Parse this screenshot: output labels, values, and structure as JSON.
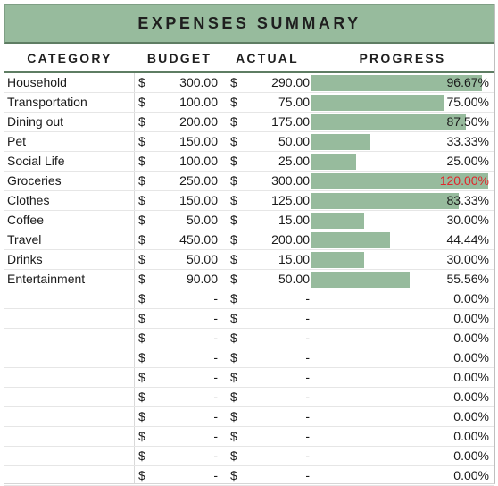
{
  "title": "EXPENSES SUMMARY",
  "headers": {
    "category": "CATEGORY",
    "budget": "BUDGET",
    "actual": "ACTUAL",
    "progress": "PROGRESS"
  },
  "currency_symbol": "$",
  "empty_value": "-",
  "colors": {
    "bar": "#97bb9d",
    "header_bg": "#97bb9d",
    "over_budget": "#e0262b"
  },
  "rows": [
    {
      "category": "Household",
      "budget": "300.00",
      "actual": "290.00",
      "progress": "96.67%",
      "progress_value": 0.9667
    },
    {
      "category": "Transportation",
      "budget": "100.00",
      "actual": "75.00",
      "progress": "75.00%",
      "progress_value": 0.75
    },
    {
      "category": "Dining out",
      "budget": "200.00",
      "actual": "175.00",
      "progress": "87.50%",
      "progress_value": 0.875
    },
    {
      "category": "Pet",
      "budget": "150.00",
      "actual": "50.00",
      "progress": "33.33%",
      "progress_value": 0.3333
    },
    {
      "category": "Social Life",
      "budget": "100.00",
      "actual": "25.00",
      "progress": "25.00%",
      "progress_value": 0.25
    },
    {
      "category": "Groceries",
      "budget": "250.00",
      "actual": "300.00",
      "progress": "120.00%",
      "progress_value": 1.2,
      "over": true
    },
    {
      "category": "Clothes",
      "budget": "150.00",
      "actual": "125.00",
      "progress": "83.33%",
      "progress_value": 0.8333
    },
    {
      "category": "Coffee",
      "budget": "50.00",
      "actual": "15.00",
      "progress": "30.00%",
      "progress_value": 0.3
    },
    {
      "category": "Travel",
      "budget": "450.00",
      "actual": "200.00",
      "progress": "44.44%",
      "progress_value": 0.4444
    },
    {
      "category": "Drinks",
      "budget": "50.00",
      "actual": "15.00",
      "progress": "30.00%",
      "progress_value": 0.3
    },
    {
      "category": "Entertainment",
      "budget": "90.00",
      "actual": "50.00",
      "progress": "55.56%",
      "progress_value": 0.5556
    },
    {
      "category": "",
      "budget": "-",
      "actual": "-",
      "progress": "0.00%",
      "progress_value": 0
    },
    {
      "category": "",
      "budget": "-",
      "actual": "-",
      "progress": "0.00%",
      "progress_value": 0
    },
    {
      "category": "",
      "budget": "-",
      "actual": "-",
      "progress": "0.00%",
      "progress_value": 0
    },
    {
      "category": "",
      "budget": "-",
      "actual": "-",
      "progress": "0.00%",
      "progress_value": 0
    },
    {
      "category": "",
      "budget": "-",
      "actual": "-",
      "progress": "0.00%",
      "progress_value": 0
    },
    {
      "category": "",
      "budget": "-",
      "actual": "-",
      "progress": "0.00%",
      "progress_value": 0
    },
    {
      "category": "",
      "budget": "-",
      "actual": "-",
      "progress": "0.00%",
      "progress_value": 0
    },
    {
      "category": "",
      "budget": "-",
      "actual": "-",
      "progress": "0.00%",
      "progress_value": 0
    },
    {
      "category": "",
      "budget": "-",
      "actual": "-",
      "progress": "0.00%",
      "progress_value": 0
    },
    {
      "category": "",
      "budget": "-",
      "actual": "-",
      "progress": "0.00%",
      "progress_value": 0
    }
  ]
}
